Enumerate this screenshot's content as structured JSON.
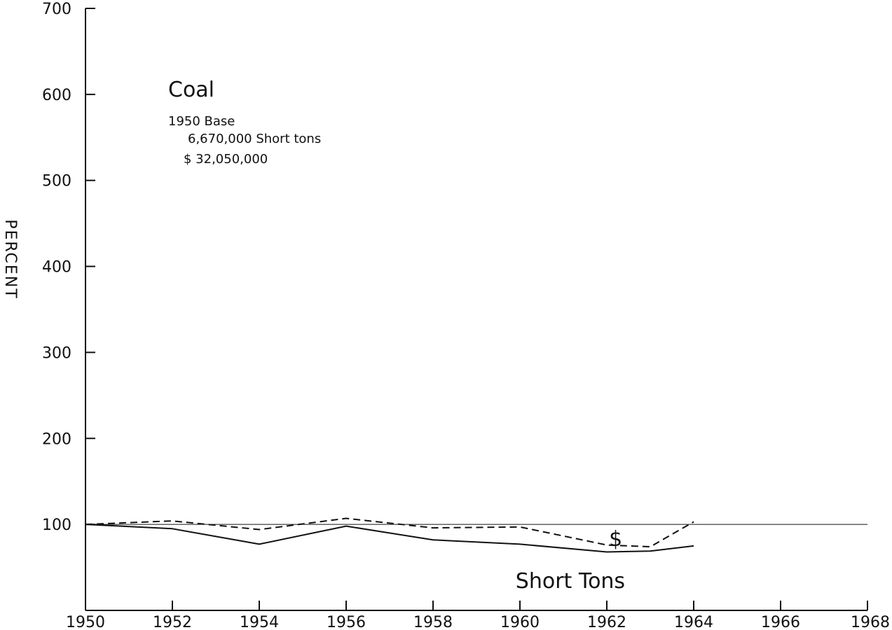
{
  "chart_data": {
    "type": "line",
    "title": "Coal",
    "notes": [
      "1950 Base",
      "6,670,000 Short tons",
      "$ 32,050,000"
    ],
    "ylabel": "PERCENT",
    "xlabel": "",
    "xlim": [
      1950,
      1968
    ],
    "ylim": [
      0,
      700
    ],
    "x_ticks": [
      "1950",
      "1952",
      "1954",
      "1956",
      "1958",
      "1960",
      "1962",
      "1964",
      "1966",
      "1968"
    ],
    "y_ticks": [
      "100",
      "200",
      "300",
      "400",
      "500",
      "600",
      "700"
    ],
    "reference_line": 100,
    "series": [
      {
        "name": "Short Tons",
        "style": "solid",
        "x": [
          1950,
          1952,
          1954,
          1956,
          1958,
          1960,
          1962,
          1963,
          1964
        ],
        "values": [
          100,
          95,
          77,
          98,
          82,
          77,
          68,
          69,
          75
        ]
      },
      {
        "name": "$",
        "style": "dashed",
        "x": [
          1950,
          1952,
          1954,
          1956,
          1958,
          1960,
          1962,
          1963,
          1964
        ],
        "values": [
          100,
          104,
          94,
          107,
          96,
          97,
          76,
          74,
          103
        ]
      }
    ],
    "colors": {
      "ink": "#111111",
      "background": "#ffffff"
    }
  }
}
